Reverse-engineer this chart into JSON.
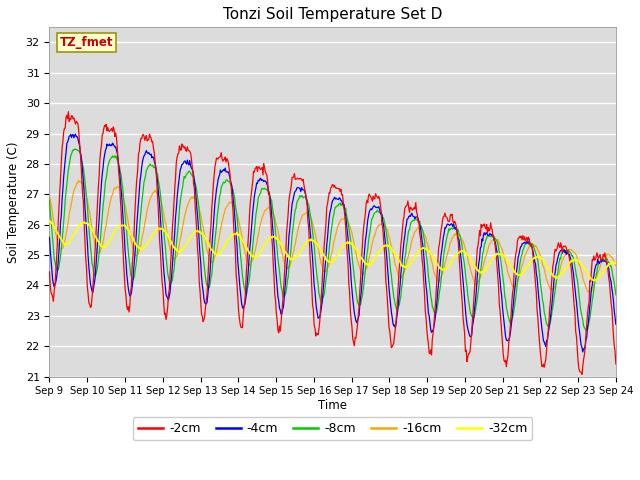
{
  "title": "Tonzi Soil Temperature Set D",
  "xlabel": "Time",
  "ylabel": "Soil Temperature (C)",
  "annotation": "TZ_fmet",
  "ylim": [
    21.0,
    32.5
  ],
  "yticks": [
    21.0,
    22.0,
    23.0,
    24.0,
    25.0,
    26.0,
    27.0,
    28.0,
    29.0,
    30.0,
    31.0,
    32.0
  ],
  "colors": {
    "-2cm": "#FF0000",
    "-4cm": "#0000FF",
    "-8cm": "#00CC00",
    "-16cm": "#FFA500",
    "-32cm": "#FFFF00"
  },
  "bg_color": "#DCDCDC",
  "n_days": 15,
  "start_day": 9,
  "legend_labels": [
    "-2cm",
    "-4cm",
    "-8cm",
    "-16cm",
    "-32cm"
  ]
}
